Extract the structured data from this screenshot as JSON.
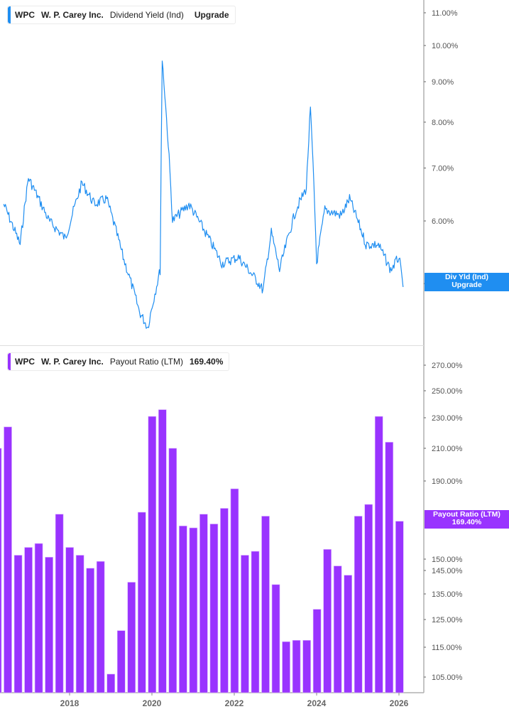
{
  "colors": {
    "yield_line": "#1f8ef1",
    "payout_bar": "#9933ff",
    "axis": "#b0b0b0",
    "tick_text": "#555555"
  },
  "top_panel": {
    "legend": {
      "ticker": "WPC",
      "company": "W. P. Carey Inc.",
      "metric": "Dividend Yield (Ind)",
      "value": "Upgrade"
    },
    "flag": {
      "line1": "Div Yld (Ind)",
      "line2": "Upgrade"
    },
    "y_ticks": [
      "11.00%",
      "10.00%",
      "9.00%",
      "8.00%",
      "7.00%",
      "6.00%",
      "5.00%"
    ]
  },
  "bottom_panel": {
    "legend": {
      "ticker": "WPC",
      "company": "W. P. Carey Inc.",
      "metric": "Payout Ratio (LTM)",
      "value": "169.40%"
    },
    "flag": {
      "line1": "Payout Ratio (LTM)",
      "line2": "169.40%"
    },
    "y_ticks": [
      "270.00%",
      "250.00%",
      "230.00%",
      "210.00%",
      "190.00%",
      "150.00%",
      "145.00%",
      "135.00%",
      "125.00%",
      "115.00%",
      "105.00%"
    ]
  },
  "x_axis": {
    "ticks": [
      "2018",
      "2020",
      "2022",
      "2024",
      "2026"
    ]
  },
  "chart_data": [
    {
      "type": "line",
      "title": "WPC W. P. Carey Inc. Dividend Yield (Ind)",
      "xlabel": "",
      "ylabel": "Dividend Yield (Ind)",
      "y_scale": "log",
      "ylim": [
        4.3,
        11.5
      ],
      "y_ticks": [
        5,
        6,
        7,
        8,
        9,
        10,
        11
      ],
      "x": [
        "2016.4",
        "2016.8",
        "2017.0",
        "2017.5",
        "2017.9",
        "2018.3",
        "2018.6",
        "2018.9",
        "2019.3",
        "2019.7",
        "2019.9",
        "2020.2",
        "2020.25",
        "2020.5",
        "2020.9",
        "2021.3",
        "2021.7",
        "2022.1",
        "2022.6",
        "2022.7",
        "2022.9",
        "2023.1",
        "2023.5",
        "2023.75",
        "2023.85",
        "2024.0",
        "2024.2",
        "2024.6",
        "2024.8",
        "2025.2",
        "2025.5",
        "2025.8",
        "2026.0",
        "2026.1"
      ],
      "series": [
        {
          "name": "Dividend Yield (Ind)",
          "values": [
            6.3,
            5.6,
            6.8,
            6.0,
            5.7,
            6.7,
            6.3,
            6.4,
            5.4,
            4.6,
            4.4,
            5.2,
            9.6,
            6.0,
            6.3,
            5.8,
            5.3,
            5.4,
            5.0,
            4.9,
            5.8,
            5.2,
            6.2,
            6.6,
            8.3,
            5.3,
            6.2,
            6.1,
            6.4,
            5.6,
            5.6,
            5.2,
            5.4,
            4.95
          ]
        }
      ],
      "legend_position": "top-left",
      "grid": false
    },
    {
      "type": "bar",
      "title": "WPC W. P. Carey Inc. Payout Ratio (LTM)",
      "xlabel": "",
      "ylabel": "Payout Ratio (LTM)",
      "ylim": [
        100,
        280
      ],
      "y_ticks": [
        105,
        115,
        125,
        135,
        145,
        150,
        190,
        210,
        230,
        250,
        270
      ],
      "categories": [
        "2016 Q2",
        "2016 Q3",
        "2016 Q4",
        "2017 Q1",
        "2017 Q2",
        "2017 Q3",
        "2017 Q4",
        "2018 Q1",
        "2018 Q2",
        "2018 Q3",
        "2018 Q4",
        "2019 Q1",
        "2019 Q2",
        "2019 Q3",
        "2019 Q4",
        "2020 Q1",
        "2020 Q2",
        "2020 Q3",
        "2020 Q4",
        "2021 Q1",
        "2021 Q2",
        "2021 Q3",
        "2021 Q4",
        "2022 Q1",
        "2022 Q2",
        "2022 Q3",
        "2022 Q4",
        "2023 Q1",
        "2023 Q2",
        "2023 Q3",
        "2023 Q4",
        "2024 Q1",
        "2024 Q2",
        "2024 Q3",
        "2024 Q4",
        "2025 Q1",
        "2025 Q2",
        "2025 Q3",
        "2025 Q4",
        "2026 Q1"
      ],
      "series": [
        {
          "name": "Payout Ratio (LTM)",
          "values": [
            210,
            224,
            152,
            156,
            158,
            151,
            173,
            156,
            152,
            146,
            149,
            106,
            121,
            140,
            174,
            231,
            236,
            210,
            167,
            166,
            173,
            168,
            176,
            186,
            152,
            154,
            172,
            139,
            117,
            117.5,
            117.5,
            129,
            155,
            147,
            143,
            172,
            178,
            231,
            214,
            169.4
          ]
        }
      ],
      "legend_position": "top-left",
      "grid": false
    }
  ]
}
